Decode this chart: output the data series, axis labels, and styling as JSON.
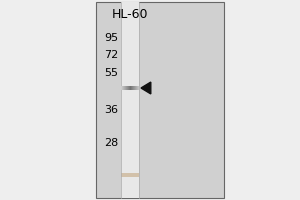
{
  "bg_color": "#f0f0f0",
  "outer_box_color": "#888888",
  "gel_bg_color": "#c8c8c8",
  "fig_width": 3.0,
  "fig_height": 2.0,
  "lane_label": "HL-60",
  "lane_label_fontsize": 9,
  "mw_markers": [
    95,
    72,
    55,
    36,
    28
  ],
  "mw_fontsize": 8,
  "arrow_color": "#111111",
  "band_color_dark": "#777777",
  "band_color_light": "#aaaaaa",
  "faint_band_color": "#c0a090"
}
